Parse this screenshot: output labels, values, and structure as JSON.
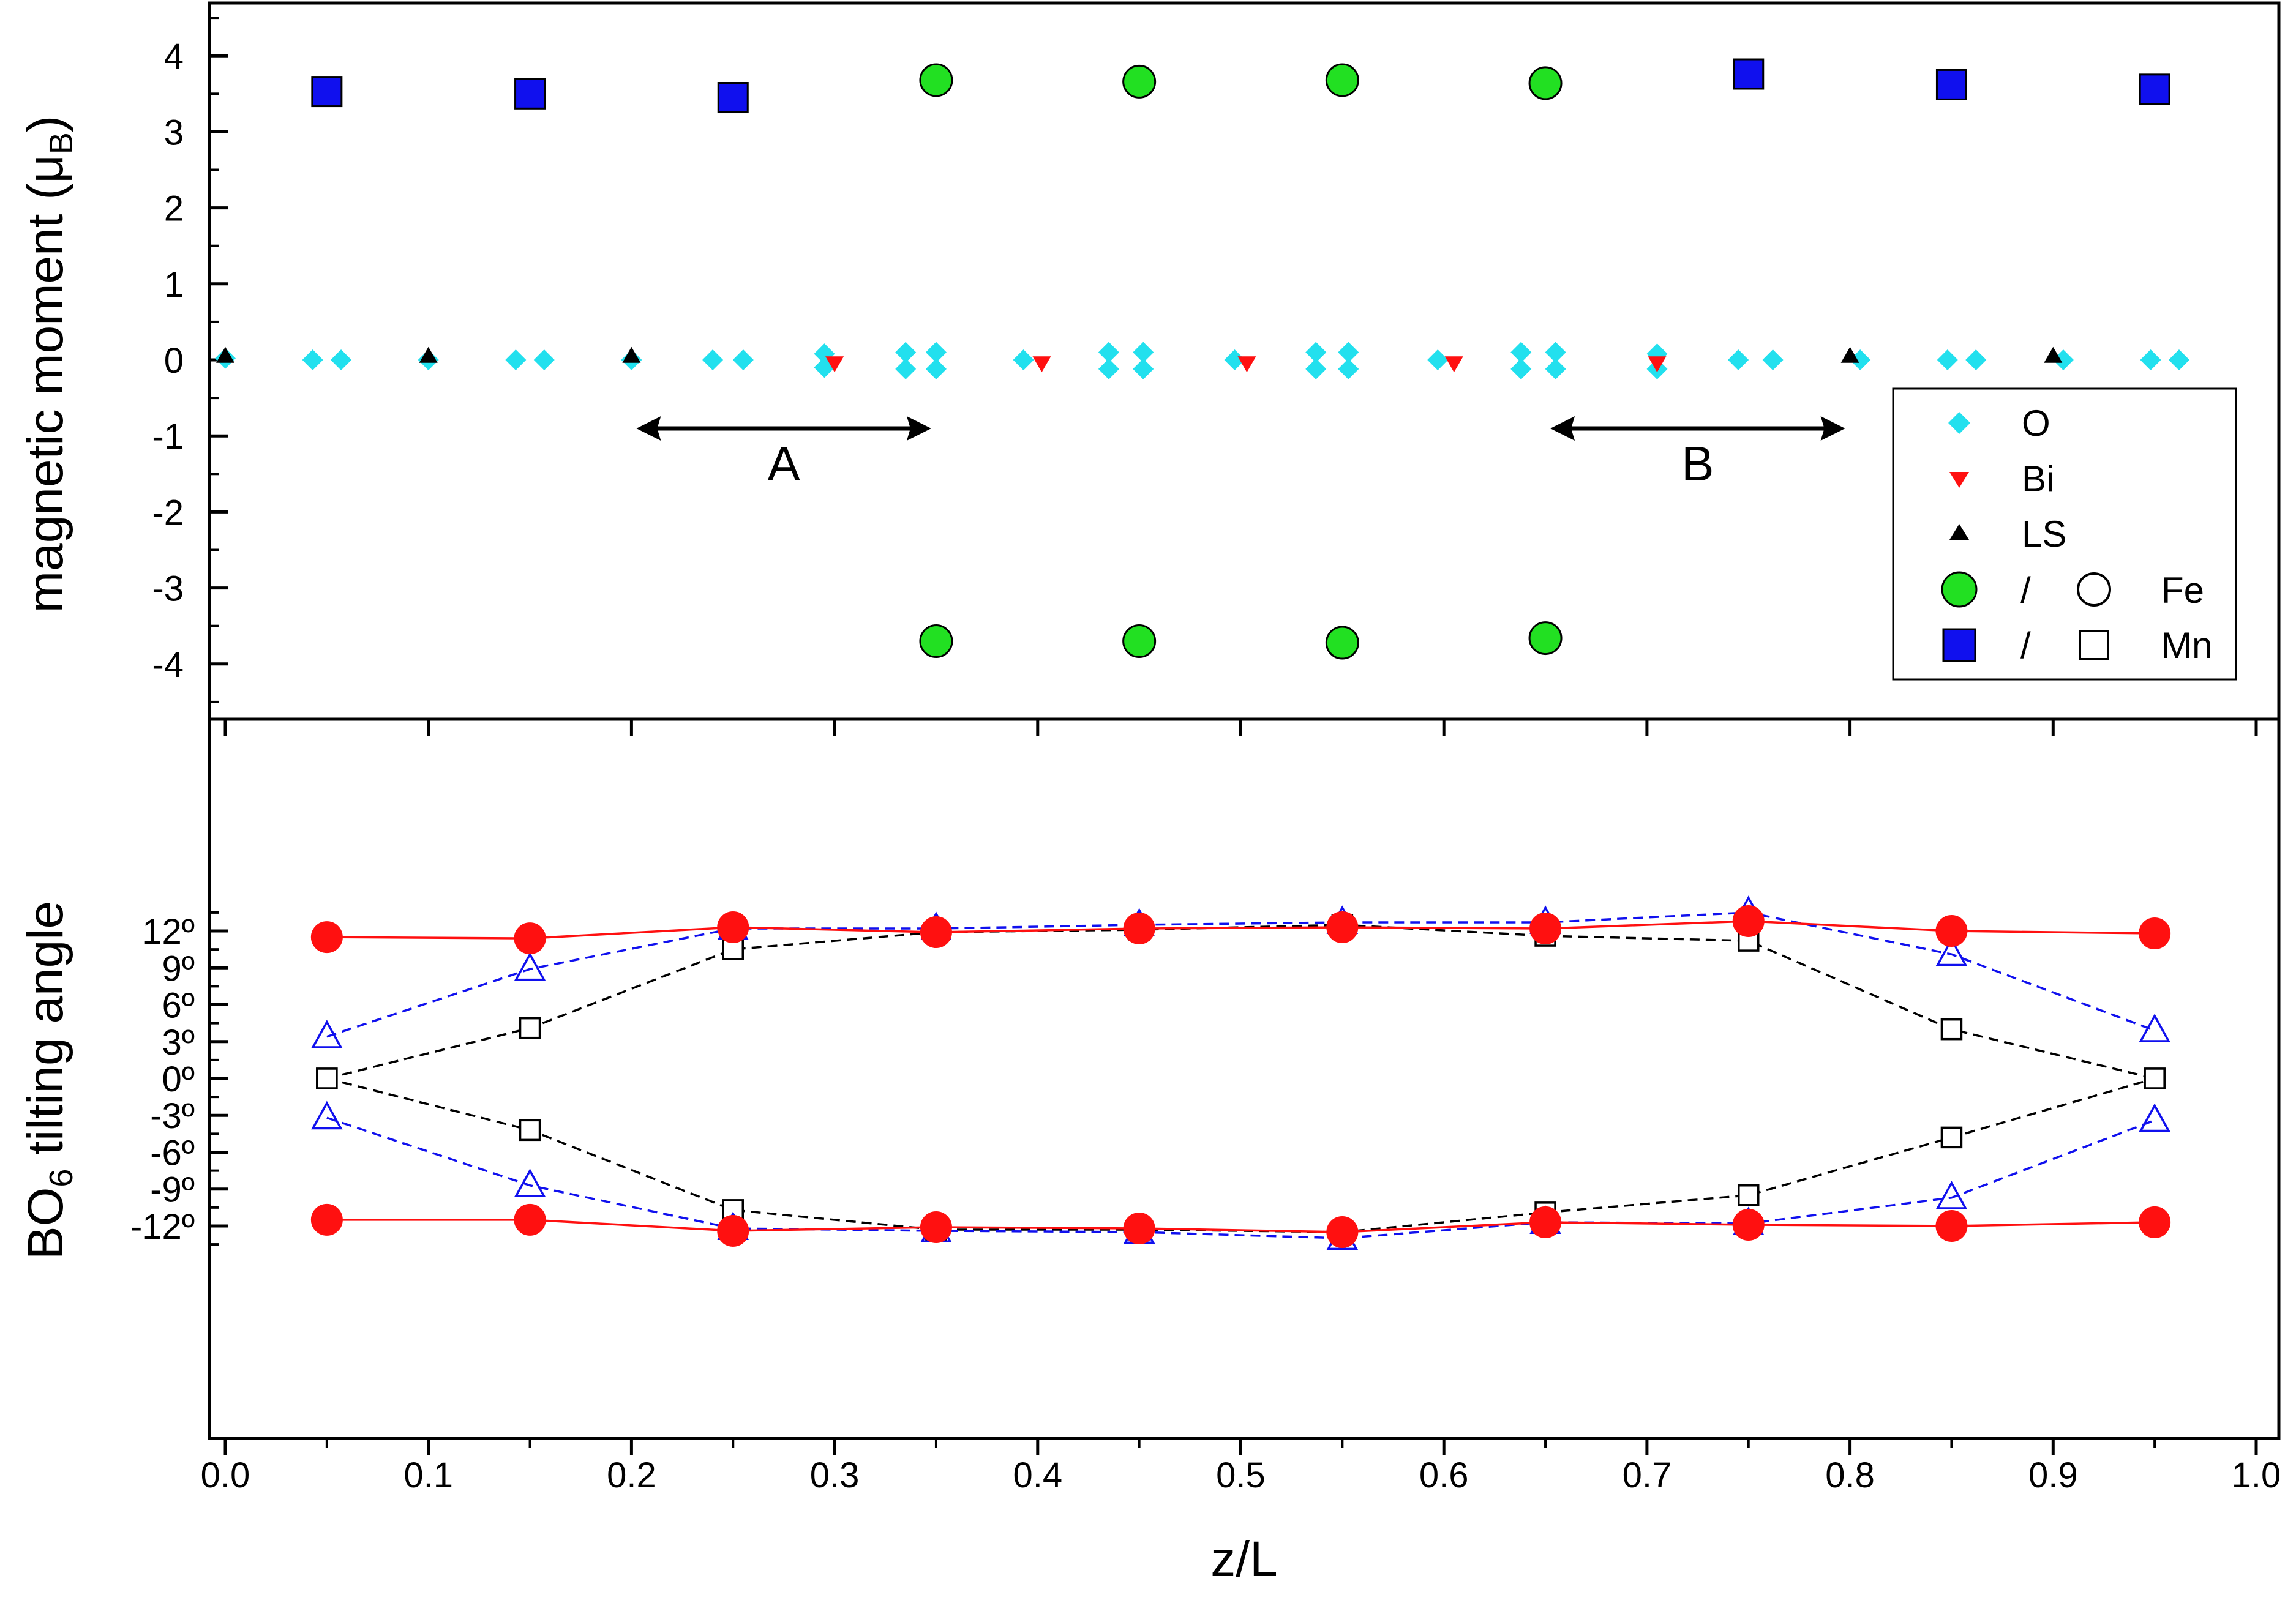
{
  "chart_data": [
    {
      "type": "scatter",
      "panel": "top",
      "ylabel": "magnetic moment (μB)",
      "ylabel_main": "magnetic moment (",
      "ylabel_mu": "μ",
      "ylabel_sub": "B",
      "ylabel_close": ")",
      "xlim": [
        0.0,
        1.0
      ],
      "ylim": [
        -4.6,
        4.6
      ],
      "yticks": [
        4,
        3,
        2,
        1,
        0,
        -1,
        -2,
        -3,
        -4
      ],
      "grid": false,
      "legend_placement": "right",
      "legend": {
        "o": "O",
        "bi": "Bi",
        "ls": "LS",
        "fe_sep": "/",
        "fe": "Fe",
        "mn_sep": "/",
        "mn": "Mn"
      },
      "annotations": [
        {
          "label": "A",
          "from": 0.2,
          "to": 0.35,
          "y": -0.95
        },
        {
          "label": "B",
          "from": 0.65,
          "to": 0.8,
          "y": -0.95
        }
      ],
      "series": [
        {
          "name": "O",
          "marker": "diamond",
          "color": "#22e0ee",
          "points": [
            [
              0.0,
              0.02
            ],
            [
              0.043,
              0.0
            ],
            [
              0.057,
              0.0
            ],
            [
              0.1,
              0.0
            ],
            [
              0.143,
              0.0
            ],
            [
              0.157,
              0.0
            ],
            [
              0.2,
              0.0
            ],
            [
              0.24,
              0.0
            ],
            [
              0.255,
              0.0
            ],
            [
              0.295,
              0.08
            ],
            [
              0.295,
              -0.1
            ],
            [
              0.335,
              0.1
            ],
            [
              0.335,
              -0.12
            ],
            [
              0.35,
              0.1
            ],
            [
              0.35,
              -0.12
            ],
            [
              0.393,
              0.0
            ],
            [
              0.435,
              0.1
            ],
            [
              0.435,
              -0.12
            ],
            [
              0.452,
              0.1
            ],
            [
              0.452,
              -0.12
            ],
            [
              0.497,
              0.0
            ],
            [
              0.537,
              0.1
            ],
            [
              0.537,
              -0.12
            ],
            [
              0.553,
              0.1
            ],
            [
              0.553,
              -0.12
            ],
            [
              0.597,
              0.0
            ],
            [
              0.638,
              0.1
            ],
            [
              0.638,
              -0.12
            ],
            [
              0.655,
              0.1
            ],
            [
              0.655,
              -0.12
            ],
            [
              0.705,
              0.08
            ],
            [
              0.705,
              -0.12
            ],
            [
              0.745,
              0.0
            ],
            [
              0.762,
              0.0
            ],
            [
              0.805,
              0.0
            ],
            [
              0.848,
              0.0
            ],
            [
              0.862,
              0.0
            ],
            [
              0.905,
              0.0
            ],
            [
              0.948,
              0.0
            ],
            [
              0.962,
              0.0
            ]
          ]
        },
        {
          "name": "Bi",
          "marker": "triangle-down",
          "color": "#ff1010",
          "points": [
            [
              0.3,
              -0.05
            ],
            [
              0.402,
              -0.05
            ],
            [
              0.503,
              -0.05
            ],
            [
              0.605,
              -0.05
            ],
            [
              0.705,
              -0.05
            ]
          ]
        },
        {
          "name": "LS",
          "marker": "triangle-up",
          "color": "#000000",
          "points": [
            [
              0.0,
              0.05
            ],
            [
              0.1,
              0.05
            ],
            [
              0.2,
              0.05
            ],
            [
              0.8,
              0.05
            ],
            [
              0.9,
              0.05
            ]
          ]
        },
        {
          "name": "Fe",
          "marker": "circle",
          "color": "#22e022",
          "points": [
            [
              0.35,
              3.68
            ],
            [
              0.45,
              3.66
            ],
            [
              0.55,
              3.68
            ],
            [
              0.65,
              3.64
            ],
            [
              0.35,
              -3.7
            ],
            [
              0.45,
              -3.7
            ],
            [
              0.55,
              -3.72
            ],
            [
              0.65,
              -3.66
            ]
          ]
        },
        {
          "name": "Mn",
          "marker": "square",
          "color": "#1010ee",
          "points": [
            [
              0.05,
              3.53
            ],
            [
              0.15,
              3.5
            ],
            [
              0.25,
              3.45
            ],
            [
              0.75,
              3.76
            ],
            [
              0.85,
              3.62
            ],
            [
              0.95,
              3.56
            ]
          ]
        }
      ]
    },
    {
      "type": "line",
      "panel": "bottom",
      "xlabel": "z/L",
      "ylabel": "BO6 tilting angle",
      "ylabel_main": "BO",
      "ylabel_sub": "6",
      "ylabel_rest": " tilting angle",
      "xlim": [
        0.0,
        1.0
      ],
      "ylim": [
        -14.6,
        14.6
      ],
      "xticks": [
        "0.0",
        "0.1",
        "0.2",
        "0.3",
        "0.4",
        "0.5",
        "0.6",
        "0.7",
        "0.8",
        "0.9",
        "1.0"
      ],
      "yticks": [
        "12º",
        "9º",
        "6º",
        "3º",
        "0º",
        "-3º",
        "-6º",
        "-9º",
        "-12º"
      ],
      "ytick_values": [
        12,
        9,
        6,
        3,
        0,
        -3,
        -6,
        -9,
        -12
      ],
      "grid": false,
      "x": [
        0.05,
        0.15,
        0.25,
        0.35,
        0.45,
        0.55,
        0.65,
        0.75,
        0.85,
        0.95
      ],
      "series": [
        {
          "id": "red-upper",
          "marker": "circle-filled",
          "color": "#ff1010",
          "line": "solid",
          "values": [
            11.5,
            11.4,
            12.3,
            11.9,
            12.2,
            12.3,
            12.2,
            12.8,
            12.0,
            11.8
          ]
        },
        {
          "id": "red-lower",
          "marker": "circle-filled",
          "color": "#ff1010",
          "line": "solid",
          "values": [
            -11.5,
            -11.5,
            -12.4,
            -12.1,
            -12.2,
            -12.5,
            -11.7,
            -11.9,
            -12.0,
            -11.7
          ]
        },
        {
          "id": "blue-upper",
          "marker": "triangle-open",
          "color": "#1010ee",
          "line": "dashed",
          "values": [
            3.4,
            8.9,
            12.2,
            12.2,
            12.5,
            12.7,
            12.7,
            13.5,
            10.1,
            3.9
          ]
        },
        {
          "id": "blue-lower",
          "marker": "triangle-open",
          "color": "#1010ee",
          "line": "dashed",
          "values": [
            -3.2,
            -8.7,
            -12.2,
            -12.4,
            -12.5,
            -13.0,
            -11.7,
            -11.8,
            -9.7,
            -3.4
          ]
        },
        {
          "id": "black-upper",
          "marker": "square-open",
          "color": "#000000",
          "line": "dashed",
          "values": [
            0.0,
            4.1,
            10.5,
            11.9,
            12.1,
            12.5,
            11.6,
            11.2,
            4.0,
            0.0
          ]
        },
        {
          "id": "black-lower",
          "marker": "square-open",
          "color": "#000000",
          "line": "dashed",
          "values": [
            0.0,
            -4.2,
            -10.7,
            -12.3,
            -12.3,
            -12.5,
            -10.9,
            -9.5,
            -4.8,
            0.0
          ]
        }
      ]
    }
  ]
}
